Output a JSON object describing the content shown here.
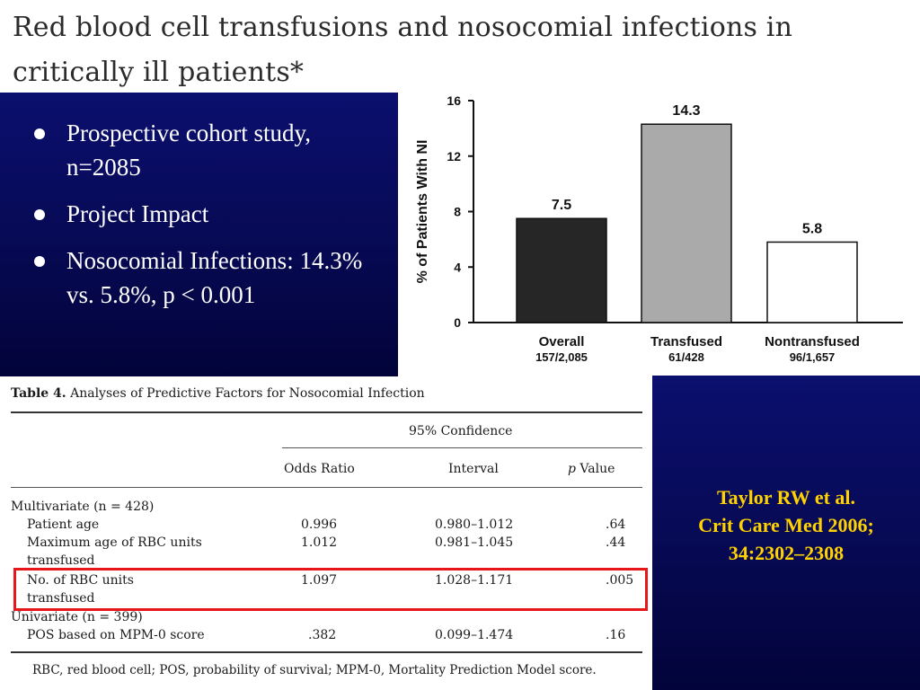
{
  "slide": {
    "title": "Red blood cell transfusions and nosocomial infections in critically ill patients*",
    "bullets": [
      "Prospective cohort study, n=2085",
      "Project Impact",
      "Nosocomial Infections: 14.3% vs. 5.8%, p < 0.001"
    ],
    "citation": {
      "line1": "Taylor RW et al.",
      "line2": "Crit Care Med 2006;",
      "line3": "34:2302–2308"
    }
  },
  "chart_data": {
    "type": "bar",
    "categories": [
      "Overall",
      "Transfused",
      "Nontransfused"
    ],
    "sublabels": [
      "157/2,085",
      "61/428",
      "96/1,657"
    ],
    "values": [
      7.5,
      14.3,
      5.8
    ],
    "data_labels": [
      "7.5",
      "14.3",
      "5.8"
    ],
    "bar_colors": [
      "#262626",
      "#aaaaaa",
      "#ffffff"
    ],
    "ylabel": "% of Patients With NI",
    "ylim": [
      0,
      16
    ],
    "yticks": [
      0,
      4,
      8,
      12,
      16
    ],
    "grid": false
  },
  "table": {
    "caption_prefix": "Table 4.",
    "caption": "Analyses of Predictive Factors for Nosocomial Infection",
    "group_header": "95% Confidence",
    "headers": {
      "odds": "Odds Ratio",
      "interval": "Interval",
      "p_italic": "p",
      "p_rest": " Value"
    },
    "multivariate_label": "Multivariate (n = 428)",
    "univariate_label": "Univariate (n = 399)",
    "rows": [
      {
        "label": "Patient age",
        "label2": "",
        "odds": "0.996",
        "interval": "0.980–1.012",
        "p": ".64"
      },
      {
        "label": "Maximum age of RBC units",
        "label2": "transfused",
        "odds": "1.012",
        "interval": "0.981–1.045",
        "p": ".44"
      },
      {
        "label": "No. of RBC units",
        "label2": "transfused",
        "odds": "1.097",
        "interval": "1.028–1.171",
        "p": ".005"
      },
      {
        "label": "POS based on MPM-0 score",
        "label2": "",
        "odds": ".382",
        "interval": "0.099–1.474",
        "p": ".16"
      }
    ],
    "footnote": "RBC, red blood cell; POS, probability of survival; MPM-0, Mortality Prediction Model score."
  }
}
